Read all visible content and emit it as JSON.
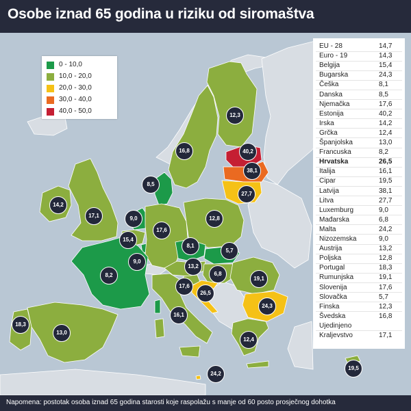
{
  "title": "Osobe iznad 65 godina u riziku od siromaštva",
  "note": "Napomena: postotak osoba iznad 65 godina starosti koje raspolažu s manje od 60 posto prosječnog dohotka",
  "colors": {
    "c0_10": "#1c9a49",
    "c10_20": "#8cae3f",
    "c20_30": "#f5c116",
    "c30_40": "#ea6a21",
    "c40_50": "#c51f33",
    "noneu": "#d8dde3",
    "sea": "#b9c7d4"
  },
  "legend": [
    {
      "label": "0 - 10,0",
      "color": "#1c9a49"
    },
    {
      "label": "10,0 - 20,0",
      "color": "#8cae3f"
    },
    {
      "label": "20,0 - 30,0",
      "color": "#f5c116"
    },
    {
      "label": "30,0 - 40,0",
      "color": "#ea6a21"
    },
    {
      "label": "40,0 - 50,0",
      "color": "#c51f33"
    }
  ],
  "table": [
    {
      "c": "EU - 28",
      "v": "14,7"
    },
    {
      "c": "Euro - 19",
      "v": "14,3"
    },
    {
      "c": "Belgija",
      "v": "15,4"
    },
    {
      "c": "Bugarska",
      "v": "24,3"
    },
    {
      "c": "Češka",
      "v": "8,1"
    },
    {
      "c": "Danska",
      "v": "8,5"
    },
    {
      "c": "Njemačka",
      "v": "17,6"
    },
    {
      "c": "Estonija",
      "v": "40,2"
    },
    {
      "c": "Irska",
      "v": "14,2"
    },
    {
      "c": "Grčka",
      "v": "12,4"
    },
    {
      "c": "Španjolska",
      "v": "13,0"
    },
    {
      "c": "Francuska",
      "v": "8,2"
    },
    {
      "c": "Hrvatska",
      "v": "26,5",
      "bold": true
    },
    {
      "c": "Italija",
      "v": "16,1"
    },
    {
      "c": "Cipar",
      "v": "19,5"
    },
    {
      "c": "Latvija",
      "v": "38,1"
    },
    {
      "c": "Litva",
      "v": "27,7"
    },
    {
      "c": "Luxemburg",
      "v": "9,0"
    },
    {
      "c": "Mađarska",
      "v": "6,8"
    },
    {
      "c": "Malta",
      "v": "24,2"
    },
    {
      "c": "Nizozemska",
      "v": "9,0"
    },
    {
      "c": "Austrija",
      "v": "13,2"
    },
    {
      "c": "Poljska",
      "v": "12,8"
    },
    {
      "c": "Portugal",
      "v": "18,3"
    },
    {
      "c": "Rumunjska",
      "v": "19,1"
    },
    {
      "c": "Slovenija",
      "v": "17,6"
    },
    {
      "c": "Slovačka",
      "v": "5,7"
    },
    {
      "c": "Finska",
      "v": "12,3"
    },
    {
      "c": "Švedska",
      "v": "16,8"
    },
    {
      "c": "Ujedinjeno",
      "v": ""
    },
    {
      "c": "Kraljevstvo",
      "v": "17,1"
    }
  ],
  "bubbles": [
    {
      "country": "finska",
      "v": "12,3"
    },
    {
      "country": "svedska",
      "v": "16,8"
    },
    {
      "country": "estonija",
      "v": "40,2"
    },
    {
      "country": "latvija",
      "v": "38,1"
    },
    {
      "country": "litva",
      "v": "27,7"
    },
    {
      "country": "danska",
      "v": "8,5"
    },
    {
      "country": "irska",
      "v": "14,2"
    },
    {
      "country": "ujedinjeno-kraljevstvo",
      "v": "17,1"
    },
    {
      "country": "nizozemska",
      "v": "9,0"
    },
    {
      "country": "belgija",
      "v": "15,4"
    },
    {
      "country": "luxemburg",
      "v": "9,0"
    },
    {
      "country": "njemacka",
      "v": "17,6"
    },
    {
      "country": "poljska",
      "v": "12,8"
    },
    {
      "country": "ceska",
      "v": "8,1"
    },
    {
      "country": "slovacka",
      "v": "5,7"
    },
    {
      "country": "austrija",
      "v": "13,2"
    },
    {
      "country": "madarska",
      "v": "6,8"
    },
    {
      "country": "slovenija",
      "v": "17,6"
    },
    {
      "country": "hrvatska",
      "v": "26,5"
    },
    {
      "country": "rumunjska",
      "v": "19,1"
    },
    {
      "country": "bugarska",
      "v": "24,3"
    },
    {
      "country": "francuska",
      "v": "8,2"
    },
    {
      "country": "italija",
      "v": "16,1"
    },
    {
      "country": "spanjolska",
      "v": "13,0"
    },
    {
      "country": "portugal",
      "v": "18,3"
    },
    {
      "country": "grcka",
      "v": "12,4"
    },
    {
      "country": "malta",
      "v": "24,2"
    },
    {
      "country": "cipar",
      "v": "19,5"
    }
  ]
}
